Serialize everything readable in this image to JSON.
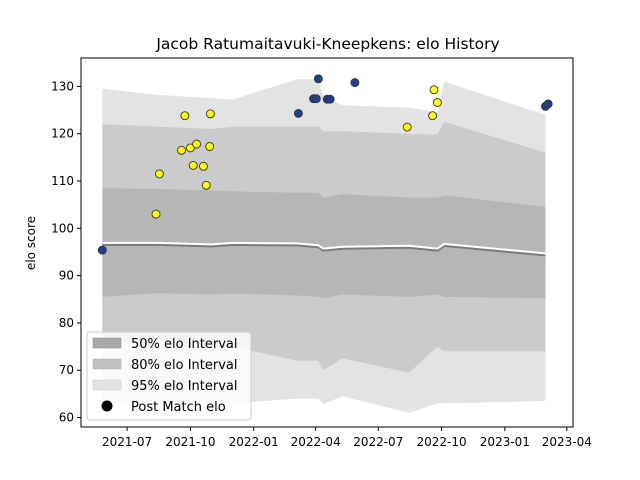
{
  "chart_data": {
    "type": "scatter",
    "title": "Jacob Ratumaitavuki-Kneepkens: elo History",
    "xlabel": "",
    "ylabel": "elo score",
    "xlim": [
      "2021-04-25",
      "2023-04-10"
    ],
    "ylim": [
      58,
      136
    ],
    "x_ticks": [
      "2021-07-01",
      "2021-10-01",
      "2022-01-01",
      "2022-04-01",
      "2022-07-01",
      "2022-10-01",
      "2023-01-01",
      "2023-04-01"
    ],
    "x_tick_labels": [
      "2021-07",
      "2021-10",
      "2022-01",
      "2022-04",
      "2022-07",
      "2022-10",
      "2023-01",
      "2023-04"
    ],
    "y_ticks": [
      60,
      70,
      80,
      90,
      100,
      110,
      120,
      130
    ],
    "grid": false,
    "legend_position": "lower-left",
    "legend": [
      {
        "label": "50% elo Interval",
        "color": "#a9a9a9"
      },
      {
        "label": "80% elo Interval",
        "color": "#c2c2c2"
      },
      {
        "label": "95% elo Interval",
        "color": "#e3e3e3"
      },
      {
        "label": "Post Match elo",
        "color": "#000000"
      }
    ],
    "bands": {
      "x": [
        "2021-05-26",
        "2021-08-15",
        "2021-11-01",
        "2021-12-01",
        "2022-03-05",
        "2022-04-05",
        "2022-04-12",
        "2022-05-10",
        "2022-08-15",
        "2022-09-25",
        "2022-10-05",
        "2023-03-01"
      ],
      "p95_upper": [
        129.5,
        128.2,
        127.5,
        127.2,
        131.5,
        131.5,
        128.0,
        126.0,
        125.5,
        124.5,
        131.0,
        124.0
      ],
      "p95_lower": [
        63.0,
        63.5,
        63.0,
        63.0,
        64.0,
        64.0,
        62.8,
        64.5,
        61.0,
        63.0,
        63.0,
        63.5
      ],
      "p80_upper": [
        122.0,
        121.5,
        121.0,
        121.5,
        121.5,
        121.5,
        120.5,
        120.5,
        120.0,
        119.8,
        122.5,
        116.0
      ],
      "p80_lower": [
        75.5,
        76.0,
        75.5,
        75.0,
        72.0,
        72.0,
        70.0,
        72.5,
        69.5,
        75.0,
        74.0,
        74.0
      ],
      "p50_upper": [
        108.5,
        108.3,
        108.0,
        107.8,
        107.5,
        107.5,
        106.5,
        107.2,
        106.5,
        106.5,
        107.0,
        104.5
      ],
      "p50_lower": [
        85.5,
        86.3,
        86.0,
        86.2,
        85.8,
        85.5,
        85.2,
        86.0,
        85.5,
        86.0,
        85.5,
        85.2
      ],
      "median": [
        96.8,
        96.8,
        96.5,
        96.8,
        96.7,
        96.3,
        95.6,
        96.0,
        96.2,
        95.6,
        96.6,
        94.6
      ]
    },
    "series": [
      {
        "name": "Post Match elo",
        "points": [
          {
            "x": "2021-05-26",
            "y": 95.4,
            "color": "#1f3f8f"
          },
          {
            "x": "2021-08-12",
            "y": 103.0,
            "color": "#ffff00"
          },
          {
            "x": "2021-08-17",
            "y": 111.5,
            "color": "#ffff00"
          },
          {
            "x": "2021-09-18",
            "y": 116.5,
            "color": "#ffff00"
          },
          {
            "x": "2021-09-23",
            "y": 123.8,
            "color": "#ffff00"
          },
          {
            "x": "2021-10-01",
            "y": 117.0,
            "color": "#ffff00"
          },
          {
            "x": "2021-10-05",
            "y": 113.3,
            "color": "#ffff00"
          },
          {
            "x": "2021-10-10",
            "y": 117.8,
            "color": "#ffff00"
          },
          {
            "x": "2021-10-20",
            "y": 113.1,
            "color": "#ffff00"
          },
          {
            "x": "2021-10-24",
            "y": 109.1,
            "color": "#ffff00"
          },
          {
            "x": "2021-10-29",
            "y": 117.3,
            "color": "#ffff00"
          },
          {
            "x": "2021-10-30",
            "y": 124.2,
            "color": "#ffff00"
          },
          {
            "x": "2022-03-07",
            "y": 124.3,
            "color": "#1f3f8f"
          },
          {
            "x": "2022-03-29",
            "y": 127.4,
            "color": "#1f3f8f"
          },
          {
            "x": "2022-04-02",
            "y": 127.4,
            "color": "#1f3f8f"
          },
          {
            "x": "2022-04-05",
            "y": 131.6,
            "color": "#1f3f8f"
          },
          {
            "x": "2022-04-18",
            "y": 127.3,
            "color": "#1f3f8f"
          },
          {
            "x": "2022-04-22",
            "y": 127.3,
            "color": "#1f3f8f"
          },
          {
            "x": "2022-05-28",
            "y": 130.8,
            "color": "#1f3f8f"
          },
          {
            "x": "2022-08-12",
            "y": 121.4,
            "color": "#ffff00"
          },
          {
            "x": "2022-09-18",
            "y": 123.8,
            "color": "#ffff00"
          },
          {
            "x": "2022-09-20",
            "y": 129.3,
            "color": "#ffff00"
          },
          {
            "x": "2022-09-25",
            "y": 126.6,
            "color": "#ffff00"
          },
          {
            "x": "2023-03-01",
            "y": 125.8,
            "color": "#1f3f8f"
          },
          {
            "x": "2023-03-05",
            "y": 126.3,
            "color": "#1f3f8f"
          }
        ]
      }
    ]
  }
}
